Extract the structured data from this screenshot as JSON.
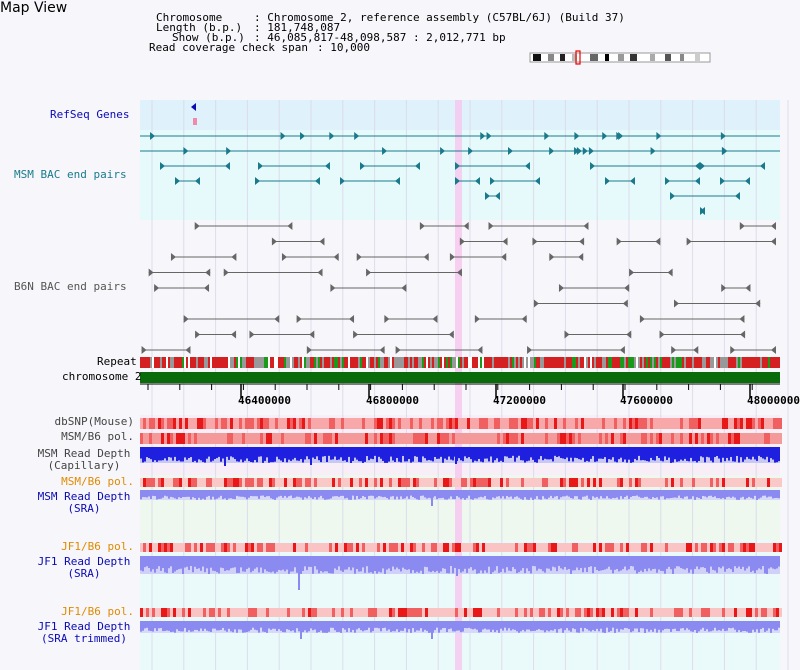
{
  "page": {
    "title": "Map View"
  },
  "header": {
    "chromosome_label": "Chromosome",
    "chromosome_value": ": Chromosome 2, reference assembly (C57BL/6J) (Build 37)",
    "length_label": "Length (b.p.)",
    "length_value": ": 181,748,087",
    "show_label": "Show (b.p.)",
    "show_value": ": 46,085,817-48,098,587 : 2,012,771 bp",
    "coverage_label": "Read coverage check span",
    "coverage_value": ": 10,000"
  },
  "tracks": {
    "refseq": "RefSeq Genes",
    "msm_bac": "MSM BAC end pairs",
    "b6n_bac": "B6N BAC end pairs",
    "repeat": "Repeat",
    "chromosome": "chromosome 2",
    "dbsnp": "dbSNP(Mouse)",
    "msm_b6_pol": "MSM/B6 pol.",
    "msm_depth_cap_1": "MSM Read Depth",
    "msm_depth_cap_2": "(Capillary)",
    "msm_b6_pol_2": "MSM/B6 pol.",
    "msm_depth_sra_1": "MSM Read Depth",
    "msm_depth_sra_2": "(SRA)",
    "jf1_b6_pol": "JF1/B6 pol.",
    "jf1_depth_sra_1": "JF1 Read Depth",
    "jf1_depth_sra_2": "(SRA)",
    "jf1_b6_pol_2": "JF1/B6 pol.",
    "jf1_depth_trim_1": "JF1 Read Depth",
    "jf1_depth_trim_2": "(SRA trimmed)"
  },
  "axis": {
    "ticks": [
      "46400000",
      "46800000",
      "47200000",
      "47600000",
      "48000000"
    ]
  },
  "colors": {
    "teal": "#1a7a8c",
    "gray": "#666666",
    "refseq_bg": "#dff1fb",
    "bac_bg": "#e6fafb",
    "highlight": "#f6c8ee",
    "chromosome_bar": "#0a6b0a",
    "repeat_red": "#d42020",
    "depth_blue": "#1f1fe0",
    "depth_light": "#8a8af0",
    "orange_label": "#e08a00",
    "blue_label": "#0a0ab4"
  }
}
